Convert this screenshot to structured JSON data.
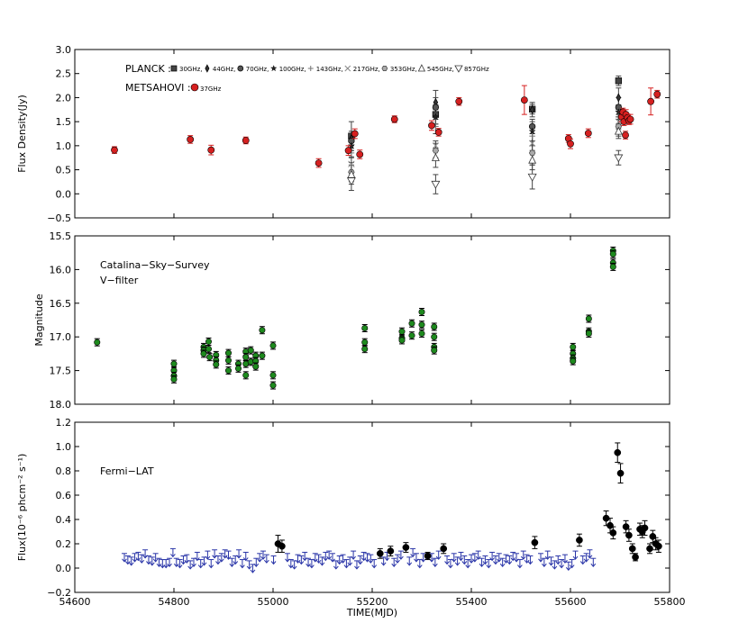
{
  "x_axis": {
    "label": "TIME(MJD)",
    "min": 54600,
    "max": 55800,
    "ticks": [
      "54600",
      "54800",
      "55000",
      "55200",
      "55400",
      "55600",
      "55800"
    ]
  },
  "colors": {
    "red": "#d62020",
    "green": "#1e8a1e",
    "blue": "#2a35a8",
    "black": "#000000",
    "gray": "#555555"
  },
  "chart_data": [
    {
      "type": "scatter",
      "ylabel": "Flux Density(Jy)",
      "ylim": [
        -0.5,
        3.0
      ],
      "yticks": [
        "3.0",
        "2.5",
        "2.0",
        "1.5",
        "1.0",
        "0.5",
        "0.0",
        "−0.5"
      ],
      "legend": {
        "planck_label": "PLANCK :",
        "planck_entries": [
          {
            "marker": "square",
            "label": "30GHz,"
          },
          {
            "marker": "diamond",
            "label": "44GHz,"
          },
          {
            "marker": "octagon",
            "label": "70GHz,"
          },
          {
            "marker": "star",
            "label": "100GHz,"
          },
          {
            "marker": "plus",
            "label": "143GHz,"
          },
          {
            "marker": "x",
            "label": "217GHz,"
          },
          {
            "marker": "hexagon",
            "label": "353GHz,"
          },
          {
            "marker": "triangle-up",
            "label": "545GHz,"
          },
          {
            "marker": "triangle-down",
            "label": "857GHz"
          }
        ],
        "metsahovi_label": "METSAHOVI :",
        "metsahovi_entry": "37GHz"
      },
      "metsahovi_37GHz": [
        [
          54680,
          0.91,
          0.07
        ],
        [
          54833,
          1.13,
          0.08
        ],
        [
          54875,
          0.91,
          0.1
        ],
        [
          54945,
          1.11,
          0.07
        ],
        [
          55092,
          0.64,
          0.09
        ],
        [
          55152,
          0.9,
          0.1
        ],
        [
          55165,
          1.25,
          0.1
        ],
        [
          55175,
          0.82,
          0.09
        ],
        [
          55245,
          1.55,
          0.07
        ],
        [
          55320,
          1.42,
          0.1
        ],
        [
          55334,
          1.28,
          0.08
        ],
        [
          55375,
          1.92,
          0.08
        ],
        [
          55507,
          1.95,
          0.3
        ],
        [
          55596,
          1.15,
          0.08
        ],
        [
          55600,
          1.04,
          0.1
        ],
        [
          55636,
          1.26,
          0.09
        ],
        [
          55703,
          1.6,
          0.1
        ],
        [
          55706,
          1.7,
          0.08
        ],
        [
          55708,
          1.5,
          0.08
        ],
        [
          55711,
          1.22,
          0.08
        ],
        [
          55712,
          1.65,
          0.1
        ],
        [
          55715,
          1.58,
          0.08
        ],
        [
          55718,
          1.52,
          0.08
        ],
        [
          55721,
          1.55,
          0.1
        ],
        [
          55762,
          1.92,
          0.28
        ],
        [
          55775,
          2.07,
          0.08
        ]
      ],
      "planck_epochs": [
        {
          "mjd": 55158,
          "values": [
            1.2,
            1.15,
            1.1,
            1.0,
            0.85,
            0.62,
            0.45,
            0.4,
            0.27
          ],
          "err": [
            0.3,
            0.15,
            0.1,
            0.1,
            0.1,
            0.15,
            0.2,
            0.2,
            0.2
          ]
        },
        {
          "mjd": 55328,
          "values": [
            1.65,
            1.9,
            1.8,
            1.6,
            1.4,
            1.0,
            0.9,
            0.75,
            0.2
          ],
          "err": [
            0.2,
            0.25,
            0.2,
            0.15,
            0.15,
            0.1,
            0.15,
            0.2,
            0.2
          ]
        },
        {
          "mjd": 55523,
          "values": [
            1.76,
            1.75,
            1.4,
            1.3,
            1.2,
            1.05,
            0.85,
            0.7,
            0.35
          ],
          "err": [
            0.1,
            0.15,
            0.15,
            0.2,
            0.2,
            0.2,
            0.25,
            0.2,
            0.25
          ]
        },
        {
          "mjd": 55697,
          "values": [
            2.35,
            2.0,
            1.8,
            1.7,
            1.6,
            1.5,
            1.4,
            1.3,
            0.75
          ],
          "err": [
            0.1,
            0.2,
            0.2,
            0.15,
            0.15,
            0.15,
            0.2,
            0.15,
            0.15
          ]
        }
      ]
    },
    {
      "type": "scatter",
      "ylabel": "Magnitude",
      "ylim": [
        18.0,
        15.5
      ],
      "yticks": [
        "15.5",
        "16.0",
        "16.5",
        "17.0",
        "17.5",
        "18.0"
      ],
      "annotation": [
        "Catalina−Sky−Survey",
        "V−filter"
      ],
      "points": [
        [
          54645,
          17.08
        ],
        [
          54800,
          17.4
        ],
        [
          54800,
          17.5
        ],
        [
          54800,
          17.58
        ],
        [
          54800,
          17.63
        ],
        [
          54860,
          17.15
        ],
        [
          54860,
          17.2
        ],
        [
          54860,
          17.25
        ],
        [
          54870,
          17.07
        ],
        [
          54870,
          17.18
        ],
        [
          54872,
          17.3
        ],
        [
          54885,
          17.27
        ],
        [
          54885,
          17.35
        ],
        [
          54885,
          17.41
        ],
        [
          54910,
          17.24
        ],
        [
          54910,
          17.35
        ],
        [
          54910,
          17.5
        ],
        [
          54930,
          17.4
        ],
        [
          54930,
          17.47
        ],
        [
          54945,
          17.22
        ],
        [
          54945,
          17.3
        ],
        [
          54945,
          17.4
        ],
        [
          54945,
          17.57
        ],
        [
          54955,
          17.2
        ],
        [
          54955,
          17.37
        ],
        [
          54965,
          17.28
        ],
        [
          54965,
          17.36
        ],
        [
          54965,
          17.44
        ],
        [
          54978,
          16.9
        ],
        [
          54978,
          17.28
        ],
        [
          55000,
          17.13
        ],
        [
          55000,
          17.57
        ],
        [
          55000,
          17.72
        ],
        [
          55185,
          16.87
        ],
        [
          55185,
          17.08
        ],
        [
          55185,
          17.18
        ],
        [
          55260,
          16.92
        ],
        [
          55260,
          17.02
        ],
        [
          55260,
          17.05
        ],
        [
          55280,
          16.8
        ],
        [
          55280,
          16.98
        ],
        [
          55300,
          16.63
        ],
        [
          55300,
          16.82
        ],
        [
          55300,
          16.95
        ],
        [
          55325,
          16.85
        ],
        [
          55325,
          17.0
        ],
        [
          55325,
          17.15
        ],
        [
          55325,
          17.2
        ],
        [
          55605,
          17.15
        ],
        [
          55605,
          17.25
        ],
        [
          55605,
          17.32
        ],
        [
          55605,
          17.36
        ],
        [
          55637,
          16.73
        ],
        [
          55637,
          16.92
        ],
        [
          55637,
          16.95
        ],
        [
          55686,
          15.72
        ],
        [
          55686,
          15.77
        ],
        [
          55686,
          15.9
        ],
        [
          55686,
          15.96
        ]
      ]
    },
    {
      "type": "scatter",
      "ylabel": "Flux(10⁻⁶ phcm⁻² s⁻¹)",
      "ylim": [
        -0.2,
        1.2
      ],
      "yticks": [
        "1.2",
        "1.0",
        "0.8",
        "0.6",
        "0.4",
        "0.2",
        "0.0",
        "−0.2"
      ],
      "annotation": "Fermi−LAT",
      "detections": [
        [
          55010,
          0.2,
          0.07
        ],
        [
          55018,
          0.18,
          0.05
        ],
        [
          55216,
          0.12,
          0.04
        ],
        [
          55237,
          0.14,
          0.04
        ],
        [
          55268,
          0.17,
          0.04
        ],
        [
          55312,
          0.1,
          0.03
        ],
        [
          55344,
          0.16,
          0.04
        ],
        [
          55528,
          0.21,
          0.05
        ],
        [
          55618,
          0.23,
          0.05
        ],
        [
          55672,
          0.41,
          0.06
        ],
        [
          55680,
          0.35,
          0.06
        ],
        [
          55686,
          0.29,
          0.05
        ],
        [
          55695,
          0.95,
          0.08
        ],
        [
          55701,
          0.78,
          0.08
        ],
        [
          55712,
          0.34,
          0.05
        ],
        [
          55718,
          0.27,
          0.05
        ],
        [
          55725,
          0.16,
          0.04
        ],
        [
          55731,
          0.09,
          0.03
        ],
        [
          55740,
          0.32,
          0.05
        ],
        [
          55745,
          0.3,
          0.05
        ],
        [
          55750,
          0.33,
          0.06
        ],
        [
          55760,
          0.16,
          0.04
        ],
        [
          55766,
          0.26,
          0.05
        ],
        [
          55772,
          0.2,
          0.05
        ],
        [
          55778,
          0.18,
          0.05
        ]
      ],
      "upper_limits": [
        [
          54700,
          0.12
        ],
        [
          54707,
          0.1
        ],
        [
          54714,
          0.09
        ],
        [
          54721,
          0.12
        ],
        [
          54728,
          0.13
        ],
        [
          54735,
          0.11
        ],
        [
          54742,
          0.15
        ],
        [
          54749,
          0.1
        ],
        [
          54756,
          0.09
        ],
        [
          54763,
          0.12
        ],
        [
          54770,
          0.08
        ],
        [
          54777,
          0.07
        ],
        [
          54784,
          0.07
        ],
        [
          54791,
          0.08
        ],
        [
          54798,
          0.16
        ],
        [
          54805,
          0.08
        ],
        [
          54812,
          0.07
        ],
        [
          54819,
          0.1
        ],
        [
          54826,
          0.11
        ],
        [
          54833,
          0.06
        ],
        [
          54840,
          0.08
        ],
        [
          54847,
          0.13
        ],
        [
          54854,
          0.07
        ],
        [
          54861,
          0.09
        ],
        [
          54868,
          0.14
        ],
        [
          54875,
          0.07
        ],
        [
          54882,
          0.15
        ],
        [
          54889,
          0.1
        ],
        [
          54896,
          0.12
        ],
        [
          54903,
          0.15
        ],
        [
          54910,
          0.14
        ],
        [
          54917,
          0.08
        ],
        [
          54924,
          0.1
        ],
        [
          54931,
          0.15
        ],
        [
          54938,
          0.07
        ],
        [
          54945,
          0.13
        ],
        [
          54952,
          0.06
        ],
        [
          54959,
          0.03
        ],
        [
          54966,
          0.08
        ],
        [
          54973,
          0.12
        ],
        [
          54980,
          0.14
        ],
        [
          54987,
          0.11
        ],
        [
          55001,
          0.1
        ],
        [
          55029,
          0.12
        ],
        [
          55036,
          0.07
        ],
        [
          55043,
          0.06
        ],
        [
          55050,
          0.11
        ],
        [
          55057,
          0.1
        ],
        [
          55064,
          0.13
        ],
        [
          55071,
          0.08
        ],
        [
          55078,
          0.07
        ],
        [
          55085,
          0.12
        ],
        [
          55092,
          0.11
        ],
        [
          55099,
          0.09
        ],
        [
          55106,
          0.13
        ],
        [
          55113,
          0.14
        ],
        [
          55120,
          0.12
        ],
        [
          55127,
          0.06
        ],
        [
          55134,
          0.1
        ],
        [
          55141,
          0.11
        ],
        [
          55148,
          0.07
        ],
        [
          55155,
          0.09
        ],
        [
          55162,
          0.14
        ],
        [
          55169,
          0.06
        ],
        [
          55176,
          0.1
        ],
        [
          55183,
          0.13
        ],
        [
          55190,
          0.12
        ],
        [
          55197,
          0.11
        ],
        [
          55204,
          0.07
        ],
        [
          55223,
          0.09
        ],
        [
          55230,
          0.13
        ],
        [
          55244,
          0.08
        ],
        [
          55251,
          0.11
        ],
        [
          55258,
          0.14
        ],
        [
          55275,
          0.09
        ],
        [
          55282,
          0.16
        ],
        [
          55289,
          0.12
        ],
        [
          55296,
          0.07
        ],
        [
          55303,
          0.12
        ],
        [
          55320,
          0.12
        ],
        [
          55327,
          0.08
        ],
        [
          55334,
          0.14
        ],
        [
          55351,
          0.1
        ],
        [
          55358,
          0.07
        ],
        [
          55365,
          0.12
        ],
        [
          55372,
          0.09
        ],
        [
          55379,
          0.13
        ],
        [
          55386,
          0.1
        ],
        [
          55393,
          0.07
        ],
        [
          55400,
          0.11
        ],
        [
          55407,
          0.12
        ],
        [
          55414,
          0.14
        ],
        [
          55421,
          0.08
        ],
        [
          55428,
          0.1
        ],
        [
          55435,
          0.07
        ],
        [
          55442,
          0.13
        ],
        [
          55449,
          0.1
        ],
        [
          55456,
          0.12
        ],
        [
          55463,
          0.08
        ],
        [
          55470,
          0.11
        ],
        [
          55477,
          0.1
        ],
        [
          55484,
          0.13
        ],
        [
          55491,
          0.12
        ],
        [
          55498,
          0.07
        ],
        [
          55505,
          0.14
        ],
        [
          55512,
          0.11
        ],
        [
          55519,
          0.1
        ],
        [
          55540,
          0.12
        ],
        [
          55547,
          0.08
        ],
        [
          55554,
          0.14
        ],
        [
          55561,
          0.09
        ],
        [
          55568,
          0.06
        ],
        [
          55575,
          0.1
        ],
        [
          55582,
          0.07
        ],
        [
          55589,
          0.11
        ],
        [
          55596,
          0.05
        ],
        [
          55603,
          0.07
        ],
        [
          55610,
          0.14
        ],
        [
          55625,
          0.1
        ],
        [
          55632,
          0.12
        ],
        [
          55639,
          0.15
        ],
        [
          55646,
          0.08
        ]
      ]
    }
  ]
}
